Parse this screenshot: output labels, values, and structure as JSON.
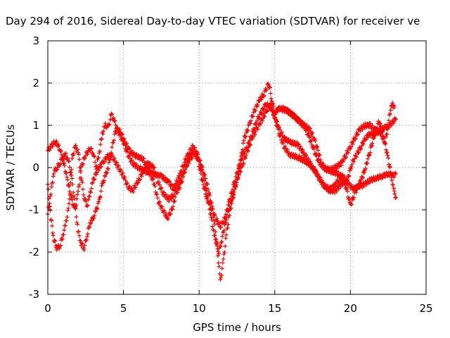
{
  "chart_data": {
    "type": "scatter",
    "title": "Day 294 of 2016, Sidereal Day-to-day VTEC variation (SDTVAR) for receiver ve",
    "xlabel": "GPS time / hours",
    "ylabel": "SDTVAR / TECUs",
    "xlim": [
      0,
      25
    ],
    "ylim": [
      -3,
      3
    ],
    "xticks": [
      "0",
      "5",
      "10",
      "15",
      "20",
      "25"
    ],
    "yticks": [
      "-3",
      "-2",
      "-1",
      "0",
      "1",
      "2",
      "3"
    ],
    "grid": true,
    "marker": "plus",
    "color": "#ff0000",
    "series": [
      {
        "points": [
          [
            0.0,
            0.4
          ],
          [
            0.2,
            0.5
          ],
          [
            0.5,
            0.62
          ],
          [
            0.8,
            0.45
          ],
          [
            1.0,
            0.2
          ],
          [
            1.3,
            -0.3
          ],
          [
            1.6,
            -0.8
          ],
          [
            1.8,
            -1.0
          ],
          [
            2.0,
            -0.6
          ],
          [
            2.2,
            0.0
          ],
          [
            2.5,
            0.3
          ],
          [
            2.8,
            0.45
          ],
          [
            3.0,
            0.35
          ],
          [
            3.2,
            0.0
          ],
          [
            3.4,
            0.35
          ],
          [
            3.6,
            0.8
          ],
          [
            3.8,
            1.0
          ],
          [
            4.0,
            0.95
          ],
          [
            4.2,
            1.25
          ],
          [
            4.4,
            1.1
          ],
          [
            4.7,
            0.8
          ],
          [
            5.0,
            0.6
          ],
          [
            5.3,
            0.3
          ],
          [
            5.6,
            0.1
          ],
          [
            6.0,
            0.0
          ],
          [
            6.5,
            -0.1
          ],
          [
            7.0,
            -0.15
          ],
          [
            7.5,
            -0.2
          ],
          [
            8.0,
            -0.35
          ],
          [
            8.3,
            -0.5
          ],
          [
            8.7,
            -0.2
          ],
          [
            9.0,
            0.1
          ],
          [
            9.3,
            0.35
          ],
          [
            9.6,
            0.5
          ],
          [
            9.9,
            0.3
          ],
          [
            10.2,
            -0.1
          ],
          [
            10.5,
            -0.6
          ],
          [
            10.8,
            -1.2
          ],
          [
            11.0,
            -1.6
          ],
          [
            11.3,
            -2.0
          ],
          [
            11.5,
            -1.7
          ],
          [
            11.8,
            -1.2
          ],
          [
            12.1,
            -0.8
          ],
          [
            12.5,
            -0.3
          ],
          [
            12.8,
            0.3
          ],
          [
            13.0,
            0.7
          ],
          [
            13.3,
            1.0
          ],
          [
            13.6,
            1.3
          ],
          [
            14.0,
            1.6
          ],
          [
            14.3,
            1.75
          ],
          [
            14.6,
            2.0
          ],
          [
            14.8,
            1.6
          ],
          [
            15.0,
            1.3
          ],
          [
            15.3,
            1.4
          ],
          [
            15.8,
            1.35
          ],
          [
            16.3,
            1.2
          ],
          [
            16.8,
            1.05
          ],
          [
            17.3,
            0.9
          ],
          [
            17.6,
            0.7
          ],
          [
            17.9,
            0.35
          ],
          [
            18.1,
            0.1
          ],
          [
            18.4,
            -0.05
          ],
          [
            18.8,
            -0.1
          ],
          [
            19.2,
            -0.15
          ],
          [
            19.6,
            -0.25
          ],
          [
            19.9,
            -0.4
          ],
          [
            20.2,
            -0.5
          ],
          [
            20.5,
            -0.45
          ],
          [
            20.9,
            -0.4
          ],
          [
            21.3,
            -0.3
          ],
          [
            21.7,
            -0.25
          ],
          [
            22.1,
            -0.2
          ],
          [
            22.5,
            -0.15
          ],
          [
            22.8,
            -0.2
          ],
          [
            23.0,
            -0.15
          ]
        ]
      },
      {
        "points": [
          [
            0.0,
            -0.4
          ],
          [
            0.2,
            -1.2
          ],
          [
            0.4,
            -1.7
          ],
          [
            0.6,
            -1.9
          ],
          [
            0.8,
            -1.85
          ],
          [
            1.0,
            -1.6
          ],
          [
            1.2,
            -1.3
          ],
          [
            1.4,
            -0.9
          ],
          [
            1.5,
            -0.4
          ],
          [
            1.6,
            0.2
          ],
          [
            1.8,
            0.5
          ],
          [
            2.0,
            0.4
          ],
          [
            2.2,
            -0.2
          ],
          [
            2.4,
            -0.7
          ],
          [
            2.6,
            -0.9
          ],
          [
            2.8,
            -0.6
          ],
          [
            3.0,
            -0.3
          ],
          [
            3.3,
            -0.05
          ],
          [
            3.6,
            0.1
          ],
          [
            3.9,
            0.25
          ],
          [
            4.2,
            0.3
          ],
          [
            4.6,
            0.05
          ],
          [
            5.0,
            -0.2
          ],
          [
            5.3,
            -0.45
          ],
          [
            5.6,
            -0.55
          ],
          [
            6.0,
            -0.3
          ],
          [
            6.3,
            -0.1
          ],
          [
            6.6,
            0.1
          ],
          [
            7.0,
            0.0
          ],
          [
            7.3,
            -0.35
          ],
          [
            7.6,
            -0.6
          ],
          [
            8.0,
            -0.75
          ],
          [
            8.3,
            -0.65
          ],
          [
            8.6,
            -0.4
          ],
          [
            9.0,
            -0.1
          ],
          [
            9.3,
            0.2
          ],
          [
            9.6,
            0.4
          ],
          [
            9.9,
            0.2
          ],
          [
            10.2,
            -0.3
          ],
          [
            10.5,
            -0.7
          ],
          [
            10.8,
            -0.95
          ],
          [
            11.1,
            -1.2
          ],
          [
            11.4,
            -1.4
          ],
          [
            11.7,
            -1.2
          ],
          [
            12.0,
            -0.8
          ],
          [
            12.3,
            -0.4
          ],
          [
            12.6,
            0.0
          ],
          [
            12.9,
            0.3
          ],
          [
            13.2,
            0.5
          ],
          [
            13.5,
            0.8
          ],
          [
            13.8,
            1.1
          ],
          [
            14.1,
            1.3
          ],
          [
            14.4,
            1.5
          ],
          [
            14.7,
            1.45
          ],
          [
            15.0,
            1.2
          ],
          [
            15.3,
            0.9
          ],
          [
            15.6,
            0.7
          ],
          [
            16.0,
            0.6
          ],
          [
            16.5,
            0.55
          ],
          [
            17.0,
            0.3
          ],
          [
            17.5,
            0.0
          ],
          [
            17.9,
            -0.2
          ],
          [
            18.2,
            -0.4
          ],
          [
            18.6,
            -0.55
          ],
          [
            19.0,
            -0.55
          ],
          [
            19.4,
            -0.4
          ],
          [
            19.8,
            -0.3
          ],
          [
            20.1,
            0.1
          ],
          [
            20.4,
            0.3
          ],
          [
            20.7,
            0.5
          ],
          [
            21.0,
            0.7
          ],
          [
            21.3,
            0.8
          ],
          [
            21.6,
            0.8
          ],
          [
            22.0,
            0.9
          ],
          [
            22.3,
            0.95
          ],
          [
            22.6,
            1.0
          ],
          [
            23.0,
            1.15
          ]
        ]
      },
      {
        "points": [
          [
            0.0,
            -1.1
          ],
          [
            0.2,
            -0.6
          ],
          [
            0.4,
            -0.1
          ],
          [
            0.6,
            0.0
          ],
          [
            0.8,
            0.1
          ],
          [
            1.0,
            0.25
          ],
          [
            1.2,
            0.3
          ],
          [
            1.4,
            0.1
          ],
          [
            1.6,
            -0.3
          ],
          [
            1.8,
            -0.9
          ],
          [
            2.0,
            -1.5
          ],
          [
            2.2,
            -1.8
          ],
          [
            2.4,
            -1.9
          ],
          [
            2.6,
            -1.6
          ],
          [
            2.8,
            -1.3
          ],
          [
            3.0,
            -1.2
          ],
          [
            3.2,
            -1.0
          ],
          [
            3.4,
            -0.8
          ],
          [
            3.6,
            -0.4
          ],
          [
            3.8,
            -0.2
          ],
          [
            4.0,
            0.0
          ],
          [
            4.2,
            0.4
          ],
          [
            4.5,
            0.9
          ],
          [
            4.8,
            0.85
          ],
          [
            5.1,
            0.6
          ],
          [
            5.4,
            0.4
          ],
          [
            5.7,
            0.3
          ],
          [
            6.0,
            0.25
          ],
          [
            6.3,
            0.2
          ],
          [
            6.6,
            0.0
          ],
          [
            7.0,
            -0.35
          ],
          [
            7.3,
            -0.8
          ],
          [
            7.6,
            -1.0
          ],
          [
            7.9,
            -1.2
          ],
          [
            8.2,
            -1.0
          ],
          [
            8.5,
            -0.6
          ],
          [
            8.8,
            -0.4
          ],
          [
            9.1,
            0.0
          ],
          [
            9.4,
            0.2
          ],
          [
            9.7,
            0.35
          ],
          [
            10.0,
            0.2
          ],
          [
            10.3,
            -0.1
          ],
          [
            10.6,
            -0.5
          ],
          [
            10.9,
            -1.0
          ],
          [
            11.2,
            -1.9
          ],
          [
            11.4,
            -2.7
          ],
          [
            11.6,
            -2.2
          ],
          [
            11.8,
            -1.6
          ],
          [
            12.0,
            -1.1
          ],
          [
            12.3,
            -0.6
          ],
          [
            12.6,
            -0.2
          ],
          [
            12.9,
            0.1
          ],
          [
            13.2,
            0.4
          ],
          [
            13.5,
            0.7
          ],
          [
            13.8,
            0.9
          ],
          [
            14.1,
            1.1
          ],
          [
            14.4,
            1.3
          ],
          [
            14.7,
            1.5
          ],
          [
            15.0,
            1.2
          ],
          [
            15.3,
            0.8
          ],
          [
            15.6,
            0.5
          ],
          [
            16.0,
            0.3
          ],
          [
            16.5,
            0.25
          ],
          [
            17.0,
            0.15
          ],
          [
            17.4,
            0.05
          ],
          [
            17.7,
            -0.1
          ],
          [
            18.0,
            -0.3
          ],
          [
            18.3,
            -0.45
          ],
          [
            18.6,
            -0.5
          ],
          [
            18.9,
            -0.45
          ],
          [
            19.2,
            -0.3
          ],
          [
            19.5,
            -0.2
          ],
          [
            19.8,
            -0.6
          ],
          [
            20.0,
            -0.9
          ],
          [
            20.3,
            -0.6
          ],
          [
            20.7,
            -0.3
          ],
          [
            21.0,
            0.0
          ],
          [
            21.3,
            0.4
          ],
          [
            21.6,
            0.8
          ],
          [
            21.9,
            1.1
          ],
          [
            22.2,
            0.7
          ],
          [
            22.5,
            0.2
          ],
          [
            22.7,
            -0.2
          ],
          [
            22.9,
            -0.6
          ],
          [
            23.0,
            -0.7
          ]
        ]
      },
      {
        "points": [
          [
            15.5,
            1.4
          ],
          [
            15.8,
            1.35
          ],
          [
            16.2,
            1.25
          ],
          [
            16.6,
            1.1
          ],
          [
            17.0,
            0.95
          ],
          [
            17.3,
            0.7
          ],
          [
            17.6,
            0.4
          ],
          [
            17.9,
            0.15
          ],
          [
            18.2,
            0.0
          ],
          [
            18.6,
            -0.05
          ],
          [
            19.0,
            0.0
          ],
          [
            19.4,
            0.1
          ],
          [
            19.7,
            0.3
          ],
          [
            20.0,
            0.5
          ],
          [
            20.3,
            0.7
          ],
          [
            20.6,
            0.9
          ],
          [
            21.0,
            1.0
          ],
          [
            21.3,
            1.0
          ],
          [
            21.6,
            0.9
          ],
          [
            22.0,
            0.8
          ],
          [
            22.3,
            0.6
          ],
          [
            22.5,
            1.0
          ],
          [
            22.7,
            1.5
          ],
          [
            22.9,
            1.45
          ]
        ]
      }
    ]
  }
}
